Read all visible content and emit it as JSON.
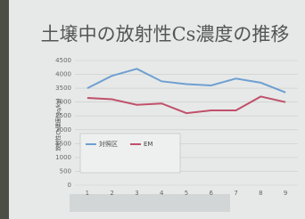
{
  "chart_data": {
    "type": "line",
    "title": "土壌中の放射性Cs濃度の推移",
    "y_label": "放射性Cs濃度(Bq/kg)",
    "categories": [
      "1",
      "2",
      "3",
      "4",
      "5",
      "6",
      "7",
      "8",
      "9"
    ],
    "series": [
      {
        "name": "対照区",
        "color": "#6f9fd0",
        "values": [
          3500,
          3950,
          4200,
          3750,
          3650,
          3600,
          3850,
          3700,
          3350
        ]
      },
      {
        "name": "EM",
        "color": "#c0506a",
        "values": [
          3150,
          3100,
          2900,
          2950,
          2600,
          2700,
          2700,
          3200,
          3000
        ]
      }
    ],
    "ylim": [
      0,
      4500
    ],
    "yticks": [
      0,
      500,
      1000,
      1500,
      2000,
      2500,
      3000,
      3500,
      4000,
      4500
    ],
    "grid": true
  }
}
